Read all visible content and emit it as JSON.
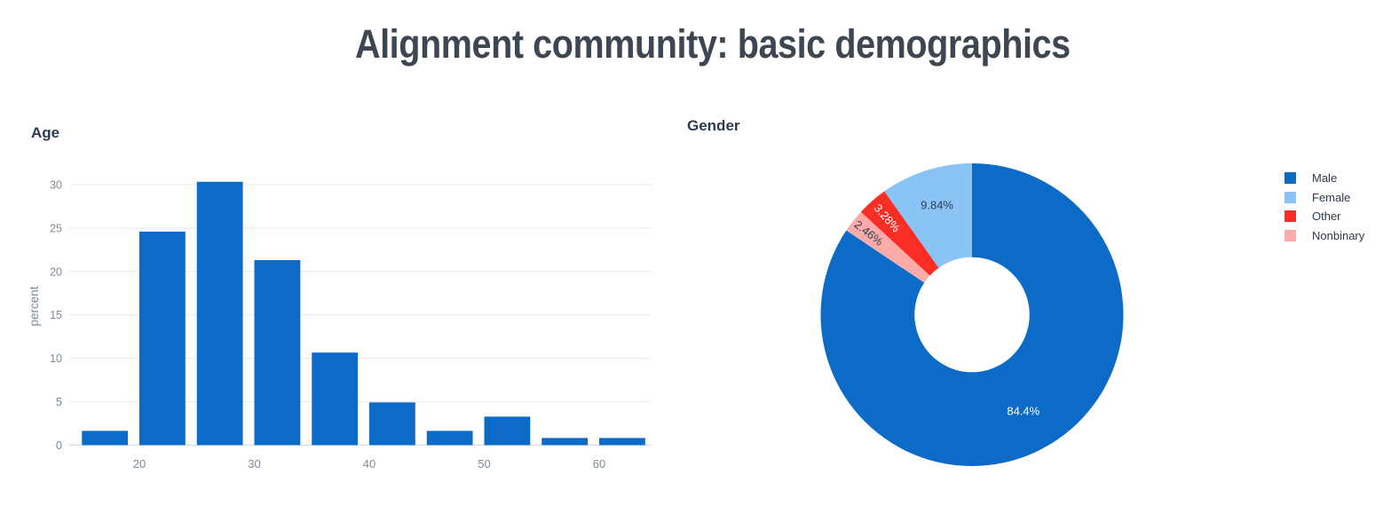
{
  "page": {
    "title": "Alignment community: basic demographics",
    "background": "#ffffff"
  },
  "colors": {
    "accent_blue": "#0d6bc8",
    "light_blue": "#89c4f4",
    "red": "#fb2e26",
    "pink": "#fcaba8",
    "title_text": "#3d4653",
    "subtitle_text": "#2e3b4e",
    "axis_text": "#7e8a97",
    "gridline": "#eceef2",
    "zeroline": "#d9dde2",
    "inside_label_dark": "#2e3d54",
    "inside_label_light": "#ffffff"
  },
  "chart_data": [
    {
      "id": "age",
      "type": "bar",
      "title": "Age",
      "xlabel": "",
      "ylabel": "percent",
      "bin_start": 15,
      "bin_width": 5,
      "bin_edges": [
        15,
        20,
        25,
        30,
        35,
        40,
        45,
        50,
        55,
        60,
        65
      ],
      "values": [
        1.64,
        24.59,
        30.33,
        21.31,
        10.66,
        4.92,
        1.64,
        3.28,
        0.82,
        0.82
      ],
      "bar_color": "#0d6bc8",
      "xticks": [
        20,
        30,
        40,
        50,
        60
      ],
      "yticks": [
        0,
        5,
        10,
        15,
        20,
        25,
        30
      ],
      "xlim": [
        13.9,
        64.6
      ],
      "ylim": [
        0,
        31.4
      ],
      "grid": true,
      "legend_position": "none"
    },
    {
      "id": "gender",
      "type": "pie",
      "title": "Gender",
      "hole": 0.38,
      "legend_position": "right",
      "slices": [
        {
          "label": "Male",
          "value": 84.4,
          "display": "84.4%",
          "color": "#0d6bc8",
          "text_color": "#ffffff",
          "label_r": 0.72,
          "rotate_label": false
        },
        {
          "label": "Female",
          "value": 9.84,
          "display": "9.84%",
          "color": "#89c4f4",
          "text_color": "#2e3d54",
          "label_r": 0.76,
          "rotate_label": false
        },
        {
          "label": "Other",
          "value": 3.28,
          "display": "3.28%",
          "color": "#fb2e26",
          "text_color": "#ffffff",
          "label_r": 0.85,
          "rotate_label": true
        },
        {
          "label": "Nonbinary",
          "value": 2.46,
          "display": "2.46%",
          "color": "#fcaba8",
          "text_color": "#2e3d54",
          "label_r": 0.87,
          "rotate_label": true
        }
      ]
    }
  ]
}
